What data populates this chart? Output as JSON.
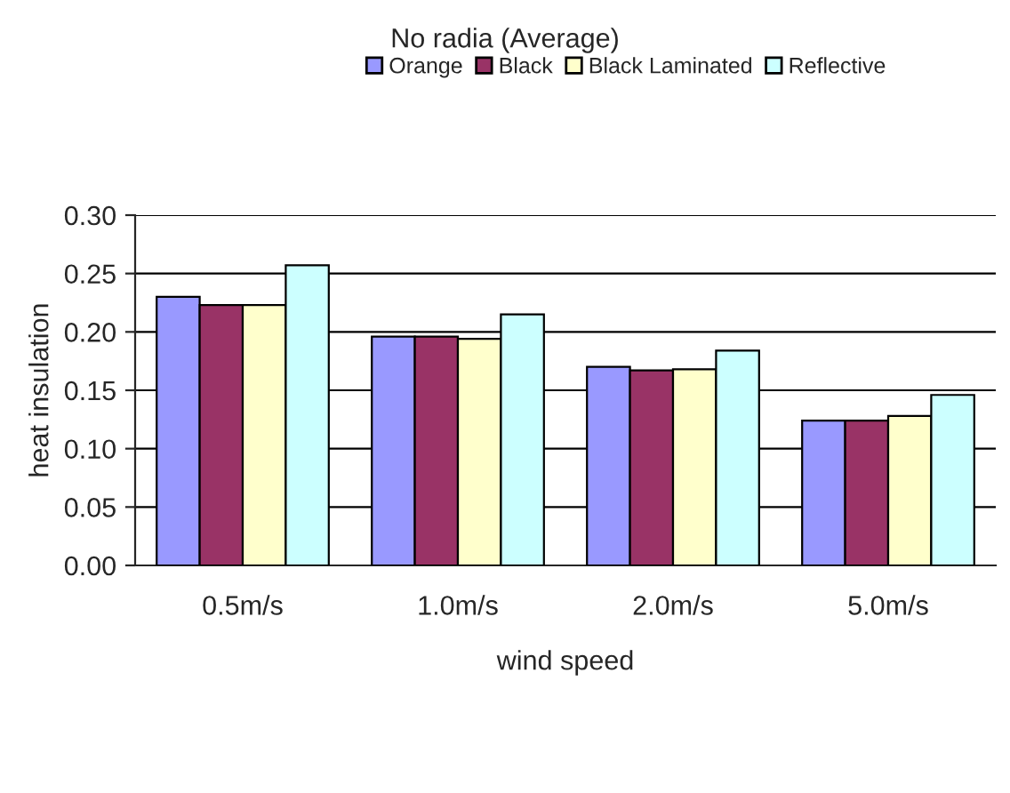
{
  "chart_data": {
    "type": "bar",
    "title": "No radia (Average)",
    "xlabel": "wind speed",
    "ylabel": "heat insulation",
    "categories": [
      "0.5m/s",
      "1.0m/s",
      "2.0m/s",
      "5.0m/s"
    ],
    "series": [
      {
        "name": "Orange",
        "color": "#9999ff",
        "values": [
          0.23,
          0.196,
          0.17,
          0.124
        ]
      },
      {
        "name": "Black",
        "color": "#993366",
        "values": [
          0.223,
          0.196,
          0.167,
          0.124
        ]
      },
      {
        "name": "Black Laminated",
        "color": "#ffffcc",
        "values": [
          0.223,
          0.194,
          0.168,
          0.128
        ]
      },
      {
        "name": "Reflective",
        "color": "#ccffff",
        "values": [
          0.257,
          0.215,
          0.184,
          0.146
        ]
      }
    ],
    "ylim": [
      0,
      0.3
    ],
    "yticks": [
      {
        "value": 0,
        "label": "0.00"
      },
      {
        "value": 0.05,
        "label": "0.05"
      },
      {
        "value": 0.1,
        "label": "0.10"
      },
      {
        "value": 0.15,
        "label": "0.15"
      },
      {
        "value": 0.2,
        "label": "0.20"
      },
      {
        "value": 0.25,
        "label": "0.25"
      },
      {
        "value": 0.3,
        "label": "0.30"
      }
    ],
    "grid": "y",
    "legend": "top"
  }
}
